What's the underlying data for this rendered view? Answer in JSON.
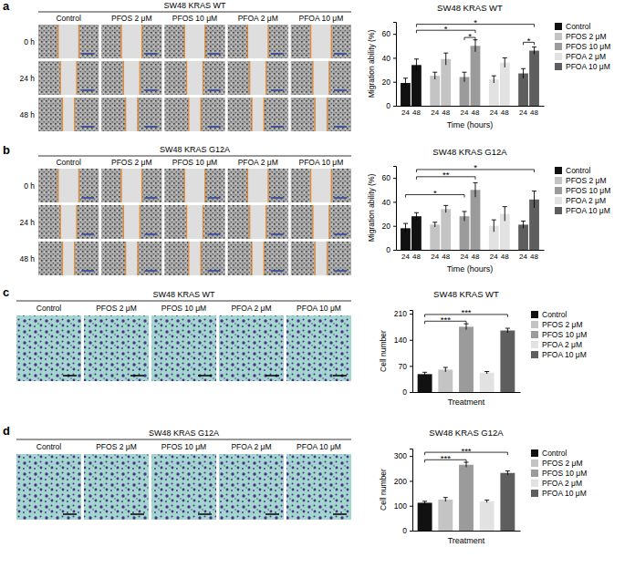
{
  "chart_data": [
    {
      "type": "bar",
      "title": "SW48 KRAS WT",
      "x_label": "Time (hours)",
      "y_label": "Migration ability (%)",
      "categories": [
        "24",
        "48"
      ],
      "series": [
        {
          "name": "Control",
          "color": "#111111",
          "values": [
            19,
            34
          ],
          "errors": [
            4,
            5
          ]
        },
        {
          "name": "PFOS 2 μM",
          "color": "#c4c4c4",
          "values": [
            25,
            39
          ],
          "errors": [
            3,
            5
          ]
        },
        {
          "name": "PFOS 10 μM",
          "color": "#9b9b9b",
          "values": [
            24,
            50
          ],
          "errors": [
            4,
            5
          ]
        },
        {
          "name": "PFOA 2 μM",
          "color": "#e2e2e2",
          "values": [
            22,
            36
          ],
          "errors": [
            3,
            4
          ]
        },
        {
          "name": "PFOA 10 μM",
          "color": "#5e5e5e",
          "values": [
            27,
            46
          ],
          "errors": [
            4,
            3
          ]
        }
      ],
      "ylim": [
        0,
        70
      ],
      "yticks": [
        0,
        20,
        40,
        60
      ],
      "grid": false,
      "legend": "right",
      "annotations": [
        {
          "text": "*",
          "y": 68,
          "from": [
            "Control",
            "48"
          ],
          "to": [
            "PFOA 10 μM",
            "48"
          ]
        },
        {
          "text": "*",
          "y": 63,
          "from": [
            "Control",
            "48"
          ],
          "to": [
            "PFOS 10 μM",
            "48"
          ]
        },
        {
          "text": "*",
          "y": 57,
          "from": [
            "PFOS 10 μM",
            "24"
          ],
          "to": [
            "PFOS 10 μM",
            "48"
          ]
        },
        {
          "text": "*",
          "y": 53,
          "from": [
            "PFOA 10 μM",
            "24"
          ],
          "to": [
            "PFOA 10 μM",
            "48"
          ]
        }
      ]
    },
    {
      "type": "bar",
      "title": "SW48 KRAS G12A",
      "x_label": "Time (hours)",
      "y_label": "Migration ability (%)",
      "categories": [
        "24",
        "48"
      ],
      "series": [
        {
          "name": "Control",
          "color": "#111111",
          "values": [
            18,
            28
          ],
          "errors": [
            4,
            3
          ]
        },
        {
          "name": "PFOS 2 μM",
          "color": "#c4c4c4",
          "values": [
            21,
            34
          ],
          "errors": [
            2,
            3
          ]
        },
        {
          "name": "PFOS 10 μM",
          "color": "#9b9b9b",
          "values": [
            28,
            50
          ],
          "errors": [
            4,
            6
          ]
        },
        {
          "name": "PFOA 2 μM",
          "color": "#e2e2e2",
          "values": [
            20,
            30
          ],
          "errors": [
            5,
            6
          ]
        },
        {
          "name": "PFOA 10 μM",
          "color": "#5e5e5e",
          "values": [
            21,
            42
          ],
          "errors": [
            3,
            7
          ]
        }
      ],
      "ylim": [
        0,
        70
      ],
      "yticks": [
        0,
        20,
        40,
        60
      ],
      "grid": false,
      "legend": "right",
      "annotations": [
        {
          "text": "*",
          "y": 67,
          "from": [
            "Control",
            "48"
          ],
          "to": [
            "PFOA 10 μM",
            "48"
          ]
        },
        {
          "text": "**",
          "y": 61,
          "from": [
            "Control",
            "48"
          ],
          "to": [
            "PFOS 10 μM",
            "48"
          ]
        },
        {
          "text": "*",
          "y": 46,
          "from": [
            "Control",
            "24"
          ],
          "to": [
            "PFOS 10 μM",
            "24"
          ]
        }
      ]
    },
    {
      "type": "bar",
      "title": "SW48 KRAS WT",
      "x_label": "Treatment",
      "y_label": "Cell number",
      "series": [
        {
          "name": "Control",
          "color": "#111111",
          "values": [
            48
          ],
          "errors": [
            5
          ]
        },
        {
          "name": "PFOS 2 μM",
          "color": "#c4c4c4",
          "values": [
            60
          ],
          "errors": [
            6
          ]
        },
        {
          "name": "PFOS 10 μM",
          "color": "#9b9b9b",
          "values": [
            175
          ],
          "errors": [
            8
          ]
        },
        {
          "name": "PFOA 2 μM",
          "color": "#e2e2e2",
          "values": [
            52
          ],
          "errors": [
            3
          ]
        },
        {
          "name": "PFOA 10 μM",
          "color": "#5e5e5e",
          "values": [
            165
          ],
          "errors": [
            6
          ]
        }
      ],
      "ylim": [
        0,
        220
      ],
      "yticks": [
        0,
        70,
        140,
        210
      ],
      "grid": false,
      "legend": "right",
      "tick_labels": "y",
      "annotations": [
        {
          "text": "***",
          "y": 190,
          "from": [
            "Control"
          ],
          "to": [
            "PFOS 10 μM"
          ]
        },
        {
          "text": "***",
          "y": 208,
          "from": [
            "Control"
          ],
          "to": [
            "PFOA 10 μM"
          ]
        }
      ]
    },
    {
      "type": "bar",
      "title": "SW48 KRAS G12A",
      "x_label": "Treatment",
      "y_label": "Cell number",
      "series": [
        {
          "name": "Control",
          "color": "#111111",
          "values": [
            112
          ],
          "errors": [
            6
          ]
        },
        {
          "name": "PFOS 2 μM",
          "color": "#c4c4c4",
          "values": [
            125
          ],
          "errors": [
            8
          ]
        },
        {
          "name": "PFOS 10 μM",
          "color": "#9b9b9b",
          "values": [
            265
          ],
          "errors": [
            10
          ]
        },
        {
          "name": "PFOA 2 μM",
          "color": "#e2e2e2",
          "values": [
            118
          ],
          "errors": [
            5
          ]
        },
        {
          "name": "PFOA 10 μM",
          "color": "#5e5e5e",
          "values": [
            232
          ],
          "errors": [
            8
          ]
        }
      ],
      "ylim": [
        0,
        330
      ],
      "yticks": [
        0,
        100,
        200,
        300
      ],
      "grid": false,
      "legend": "right",
      "tick_labels": "y",
      "annotations": [
        {
          "text": "***",
          "y": 285,
          "from": [
            "Control"
          ],
          "to": [
            "PFOS 10 μM"
          ]
        },
        {
          "text": "***",
          "y": 315,
          "from": [
            "Control"
          ],
          "to": [
            "PFOA 10 μM"
          ]
        }
      ]
    }
  ],
  "image_panels": [
    {
      "letter": "a",
      "title": "SW48 KRAS WT",
      "columns": [
        "Control",
        "PFOS 2 μM",
        "PFOS 10 μM",
        "PFOA 2 μM",
        "PFOA 10 μM"
      ],
      "rows": [
        "0 h",
        "24 h",
        "48 h"
      ]
    },
    {
      "letter": "b",
      "title": "SW48 KRAS G12A",
      "columns": [
        "Control",
        "PFOS 2 μM",
        "PFOS 10 μM",
        "PFOA 2 μM",
        "PFOA 10 μM"
      ],
      "rows": [
        "0 h",
        "24 h",
        "48 h"
      ]
    },
    {
      "letter": "c",
      "title": "SW48 KRAS WT",
      "columns": [
        "Control",
        "PFOS 2 μM",
        "PFOS 10 μM",
        "PFOA 2 μM",
        "PFOA 10 μM"
      ]
    },
    {
      "letter": "d",
      "title": "SW48 KRAS G12A",
      "columns": [
        "Control",
        "PFOS 2 μM",
        "PFOS 10 μM",
        "PFOA 2 μM",
        "PFOA 10 μM"
      ]
    }
  ]
}
